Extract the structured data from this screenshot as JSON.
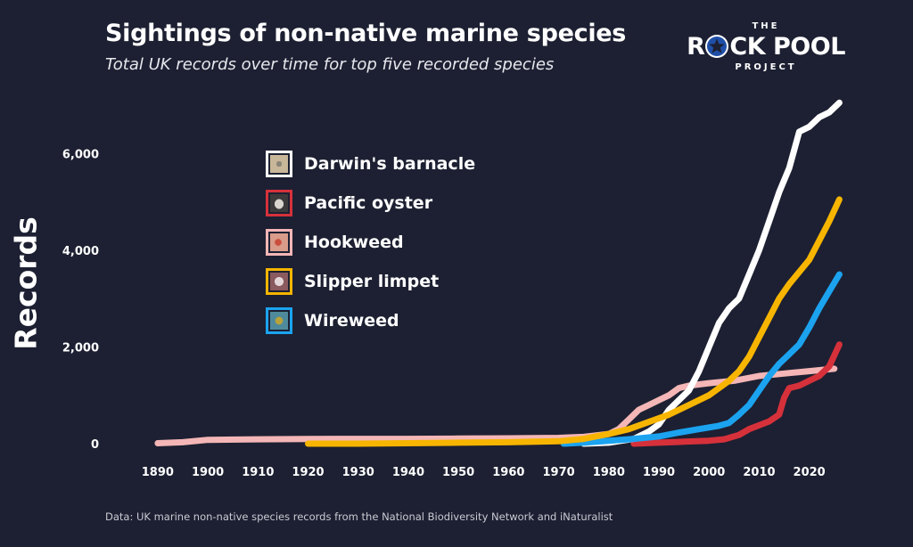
{
  "logo": {
    "top": "THE",
    "word1_pre": "R",
    "word1_post": "CK POOL",
    "bottom": "PROJECT",
    "star_icon": "star-icon"
  },
  "footnote": "Data: UK marine non-native species records from the National Biodiversity Network and iNaturalist",
  "colors": {
    "background": "#1d2032",
    "darwins_barnacle": "#ffffff",
    "pacific_oyster": "#d6313b",
    "hookweed": "#f4b6b6",
    "slipper_limpet": "#f7b500",
    "wireweed": "#1ba3f0"
  },
  "chart_data": {
    "type": "line",
    "title": "Sightings of non-native marine species",
    "subtitle": "Total UK records over time for top five recorded species",
    "xlabel": "",
    "ylabel": "Records",
    "xlim": [
      1887,
      2027
    ],
    "ylim": [
      0,
      7000
    ],
    "x_ticks": [
      1890,
      1900,
      1910,
      1920,
      1930,
      1940,
      1950,
      1960,
      1970,
      1980,
      1990,
      2000,
      2010,
      2020
    ],
    "y_ticks": [
      0,
      2000,
      4000,
      6000
    ],
    "y_tick_labels": [
      "0",
      "2,000",
      "4,000",
      "6,000"
    ],
    "grid": false,
    "legend_position": "top-left",
    "series": [
      {
        "name": "Darwin's barnacle",
        "color": "#ffffff",
        "icon": "barnacle-photo-icon",
        "points": [
          [
            1975,
            0
          ],
          [
            1980,
            20
          ],
          [
            1985,
            100
          ],
          [
            1988,
            250
          ],
          [
            1990,
            400
          ],
          [
            1992,
            700
          ],
          [
            1994,
            900
          ],
          [
            1996,
            1100
          ],
          [
            1998,
            1500
          ],
          [
            2000,
            2000
          ],
          [
            2002,
            2500
          ],
          [
            2004,
            2800
          ],
          [
            2006,
            3000
          ],
          [
            2008,
            3500
          ],
          [
            2010,
            4000
          ],
          [
            2012,
            4600
          ],
          [
            2014,
            5200
          ],
          [
            2016,
            5700
          ],
          [
            2018,
            6450
          ],
          [
            2020,
            6550
          ],
          [
            2022,
            6750
          ],
          [
            2024,
            6850
          ],
          [
            2026,
            7050
          ]
        ]
      },
      {
        "name": "Pacific oyster",
        "color": "#d6313b",
        "icon": "oyster-photo-icon",
        "points": [
          [
            1985,
            0
          ],
          [
            1990,
            20
          ],
          [
            1995,
            40
          ],
          [
            2000,
            60
          ],
          [
            2003,
            90
          ],
          [
            2006,
            180
          ],
          [
            2008,
            300
          ],
          [
            2010,
            380
          ],
          [
            2012,
            460
          ],
          [
            2014,
            600
          ],
          [
            2015,
            950
          ],
          [
            2016,
            1150
          ],
          [
            2018,
            1200
          ],
          [
            2020,
            1300
          ],
          [
            2022,
            1400
          ],
          [
            2024,
            1600
          ],
          [
            2026,
            2050
          ]
        ]
      },
      {
        "name": "Hookweed",
        "color": "#f4b6b6",
        "icon": "hookweed-photo-icon",
        "points": [
          [
            1890,
            10
          ],
          [
            1895,
            30
          ],
          [
            1900,
            80
          ],
          [
            1910,
            90
          ],
          [
            1920,
            95
          ],
          [
            1930,
            100
          ],
          [
            1940,
            100
          ],
          [
            1950,
            105
          ],
          [
            1960,
            110
          ],
          [
            1970,
            120
          ],
          [
            1975,
            140
          ],
          [
            1980,
            200
          ],
          [
            1982,
            300
          ],
          [
            1984,
            500
          ],
          [
            1986,
            700
          ],
          [
            1988,
            800
          ],
          [
            1990,
            900
          ],
          [
            1992,
            1000
          ],
          [
            1994,
            1150
          ],
          [
            1996,
            1200
          ],
          [
            2000,
            1250
          ],
          [
            2005,
            1300
          ],
          [
            2010,
            1400
          ],
          [
            2015,
            1450
          ],
          [
            2020,
            1500
          ],
          [
            2025,
            1550
          ]
        ]
      },
      {
        "name": "Slipper limpet",
        "color": "#f7b500",
        "icon": "limpet-photo-icon",
        "points": [
          [
            1920,
            0
          ],
          [
            1930,
            0
          ],
          [
            1940,
            10
          ],
          [
            1950,
            20
          ],
          [
            1960,
            30
          ],
          [
            1970,
            50
          ],
          [
            1975,
            100
          ],
          [
            1980,
            200
          ],
          [
            1984,
            300
          ],
          [
            1988,
            450
          ],
          [
            1992,
            600
          ],
          [
            1996,
            800
          ],
          [
            2000,
            1000
          ],
          [
            2004,
            1300
          ],
          [
            2006,
            1500
          ],
          [
            2008,
            1800
          ],
          [
            2010,
            2200
          ],
          [
            2012,
            2600
          ],
          [
            2014,
            3000
          ],
          [
            2016,
            3300
          ],
          [
            2018,
            3550
          ],
          [
            2020,
            3800
          ],
          [
            2022,
            4200
          ],
          [
            2024,
            4600
          ],
          [
            2026,
            5050
          ]
        ]
      },
      {
        "name": "Wireweed",
        "color": "#1ba3f0",
        "icon": "wireweed-photo-icon",
        "points": [
          [
            1971,
            0
          ],
          [
            1975,
            20
          ],
          [
            1980,
            60
          ],
          [
            1985,
            100
          ],
          [
            1990,
            150
          ],
          [
            1994,
            230
          ],
          [
            1998,
            300
          ],
          [
            2002,
            370
          ],
          [
            2004,
            430
          ],
          [
            2006,
            600
          ],
          [
            2008,
            800
          ],
          [
            2010,
            1100
          ],
          [
            2012,
            1400
          ],
          [
            2014,
            1650
          ],
          [
            2016,
            1850
          ],
          [
            2018,
            2050
          ],
          [
            2020,
            2400
          ],
          [
            2022,
            2800
          ],
          [
            2024,
            3150
          ],
          [
            2026,
            3500
          ]
        ]
      }
    ]
  }
}
